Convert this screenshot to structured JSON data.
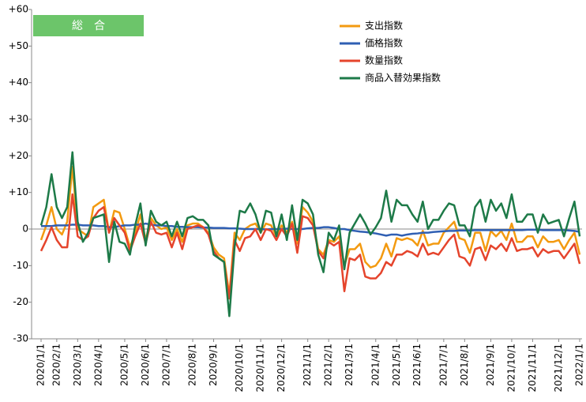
{
  "chart_data": {
    "type": "line",
    "annotations": [
      "総　合"
    ],
    "categories": [
      "2020/1/1",
      null,
      null,
      "2020/2/1",
      null,
      null,
      null,
      "2020/3/1",
      null,
      null,
      null,
      "2020/4/1",
      null,
      null,
      null,
      null,
      "2020/5/1",
      null,
      null,
      null,
      "2020/6/1",
      null,
      null,
      null,
      "2020/7/1",
      null,
      null,
      null,
      null,
      "2020/8/1",
      null,
      null,
      null,
      "2020/9/1",
      null,
      null,
      null,
      null,
      "2020/10/1",
      null,
      null,
      null,
      "2020/11/1",
      null,
      null,
      null,
      "2020/12/1",
      null,
      null,
      null,
      null,
      "2021/1/1",
      null,
      null,
      null,
      "2021/2/1",
      null,
      null,
      null,
      "2021/3/1",
      null,
      null,
      null,
      null,
      "2021/4/1",
      null,
      null,
      null,
      "2021/5/1",
      null,
      null,
      null,
      "2021/6/1",
      null,
      null,
      null,
      null,
      "2021/7/1",
      null,
      null,
      null,
      "2021/8/1",
      null,
      null,
      null,
      null,
      "2021/9/1",
      null,
      null,
      null,
      "2021/10/1",
      null,
      null,
      null,
      "2021/11/1",
      null,
      null,
      null,
      null,
      "2021/12/1",
      null,
      null,
      null,
      "2022/1/1"
    ],
    "series": [
      {
        "name": "支出指数",
        "color": "#f39a10",
        "values": [
          -3,
          1,
          6,
          0,
          -1.5,
          2,
          17,
          0,
          -1,
          -2,
          6,
          7,
          8,
          -1,
          5,
          4.5,
          0,
          -5,
          -1,
          4,
          -3,
          3,
          1,
          0,
          0.5,
          -3,
          0,
          -3.5,
          1,
          1.5,
          1.5,
          0.5,
          -1,
          -5,
          -7,
          -8,
          -18,
          -1,
          -3,
          0,
          1,
          1.5,
          -1,
          1.5,
          1,
          -2,
          1,
          -1,
          2,
          -4,
          6,
          4.5,
          2,
          -5.5,
          -7,
          -3,
          -3.5,
          -2,
          -10,
          -5.5,
          -5.5,
          -4,
          -9,
          -10.5,
          -10,
          -8,
          -4,
          -7.5,
          -2.5,
          -3,
          -2.5,
          -3,
          -4.5,
          -0.5,
          -4.5,
          -4,
          -4,
          -1,
          0.5,
          2,
          -2.5,
          -3,
          -6.5,
          -1,
          -1,
          -6,
          -0.5,
          -2,
          -0.5,
          -3,
          1.5,
          -3.5,
          -3.5,
          -2,
          -2,
          -5,
          -2,
          -3.5,
          -3.5,
          -3,
          -5.5,
          -3,
          -1,
          -7
        ]
      },
      {
        "name": "価格指数",
        "color": "#2f5fb3",
        "values": [
          0.8,
          0.8,
          0.8,
          1,
          1,
          1,
          1.2,
          1.2,
          1,
          1,
          1,
          0.8,
          0.8,
          0.5,
          0.5,
          0.8,
          1,
          1,
          1.2,
          1.2,
          1.5,
          1.2,
          1,
          1,
          0.8,
          0.8,
          0.6,
          0.6,
          0.5,
          0.5,
          0.5,
          0.4,
          0.4,
          0.3,
          0.3,
          0.3,
          0.2,
          0.2,
          0.1,
          0,
          0,
          0,
          0,
          -0.1,
          0,
          0,
          0,
          0.1,
          0,
          0,
          0,
          0.2,
          0.3,
          0.3,
          0.5,
          0.5,
          0.3,
          0,
          0,
          -0.3,
          -0.5,
          -0.7,
          -0.8,
          -1,
          -1.2,
          -1.5,
          -1.8,
          -1.5,
          -1.5,
          -1.8,
          -1.5,
          -1.3,
          -1.2,
          -1,
          -1,
          -0.8,
          -0.7,
          -0.6,
          -0.5,
          -0.5,
          -0.4,
          -0.4,
          -0.4,
          -0.3,
          -0.3,
          -0.3,
          -0.3,
          -0.3,
          -0.3,
          -0.3,
          -0.3,
          -0.3,
          -0.3,
          -0.2,
          -0.2,
          -0.2,
          -0.3,
          -0.3,
          -0.3,
          -0.3,
          -0.3,
          -0.4,
          -0.5,
          -0.8
        ]
      },
      {
        "name": "数量指数",
        "color": "#e5442c",
        "values": [
          -6,
          -3,
          0.5,
          -3,
          -5,
          -5,
          9.5,
          -2,
          -3,
          -2,
          3,
          5,
          6,
          -1,
          3,
          1,
          -1,
          -6,
          -2,
          1.5,
          -4,
          2,
          -1,
          -1.5,
          -1,
          -5,
          -1,
          -5.5,
          0,
          0.5,
          1,
          0.5,
          -1.5,
          -6,
          -8,
          -9,
          -19,
          -3,
          -6,
          -2.5,
          -2,
          0,
          -3,
          0,
          -0.5,
          -3,
          0,
          -2,
          1.5,
          -6.5,
          3.5,
          3,
          1,
          -6,
          -8,
          -3.5,
          -4.5,
          -3.5,
          -17,
          -8,
          -8.5,
          -7,
          -13,
          -13.5,
          -13.5,
          -12,
          -9,
          -10,
          -7,
          -7,
          -6,
          -6.5,
          -7.5,
          -4,
          -7,
          -6.5,
          -7,
          -5,
          -3,
          -1.5,
          -7.5,
          -8,
          -10,
          -5.5,
          -5,
          -8.5,
          -4.5,
          -5.5,
          -4,
          -6,
          -2.5,
          -6,
          -5.5,
          -5.5,
          -5,
          -7.5,
          -5.5,
          -6.5,
          -6,
          -6,
          -8,
          -6,
          -4,
          -9.5
        ]
      },
      {
        "name": "商品入替効果指数",
        "color": "#1d7a48",
        "values": [
          1,
          6,
          15,
          6,
          3,
          6,
          21,
          2,
          -3.5,
          -1,
          3,
          3.5,
          4,
          -9,
          2,
          -3.5,
          -4,
          -7,
          1,
          7,
          -4.5,
          5,
          2,
          1,
          2,
          -2,
          2,
          -2,
          3,
          3.5,
          2.5,
          2.5,
          1,
          -7,
          -8,
          -9,
          -23.8,
          -5,
          5,
          4.5,
          7,
          4,
          -1,
          5,
          4.5,
          -2,
          4,
          -3,
          6.5,
          -3,
          8,
          7,
          4,
          -7,
          -11.8,
          -1,
          -3,
          1,
          -11,
          -1,
          1.5,
          4,
          1.5,
          -1.5,
          0.5,
          3,
          10.5,
          2,
          8,
          6.5,
          6.5,
          4,
          2,
          7.5,
          0,
          2.5,
          2.5,
          5,
          7,
          6.5,
          1,
          1,
          -2,
          6,
          8,
          2,
          8,
          5,
          7,
          3,
          9.5,
          2,
          2,
          4,
          4,
          -1,
          4,
          1.5,
          2,
          2.5,
          -2,
          3,
          7.5,
          -2
        ]
      }
    ],
    "ylim": [
      -30,
      60
    ],
    "yticks": [
      {
        "value": 60,
        "label": "+60"
      },
      {
        "value": 50,
        "label": "+50"
      },
      {
        "value": 40,
        "label": "+40"
      },
      {
        "value": 30,
        "label": "+30"
      },
      {
        "value": 20,
        "label": "+20"
      },
      {
        "value": 10,
        "label": "+10"
      },
      0,
      -10,
      -20,
      -30
    ],
    "grid": false
  }
}
